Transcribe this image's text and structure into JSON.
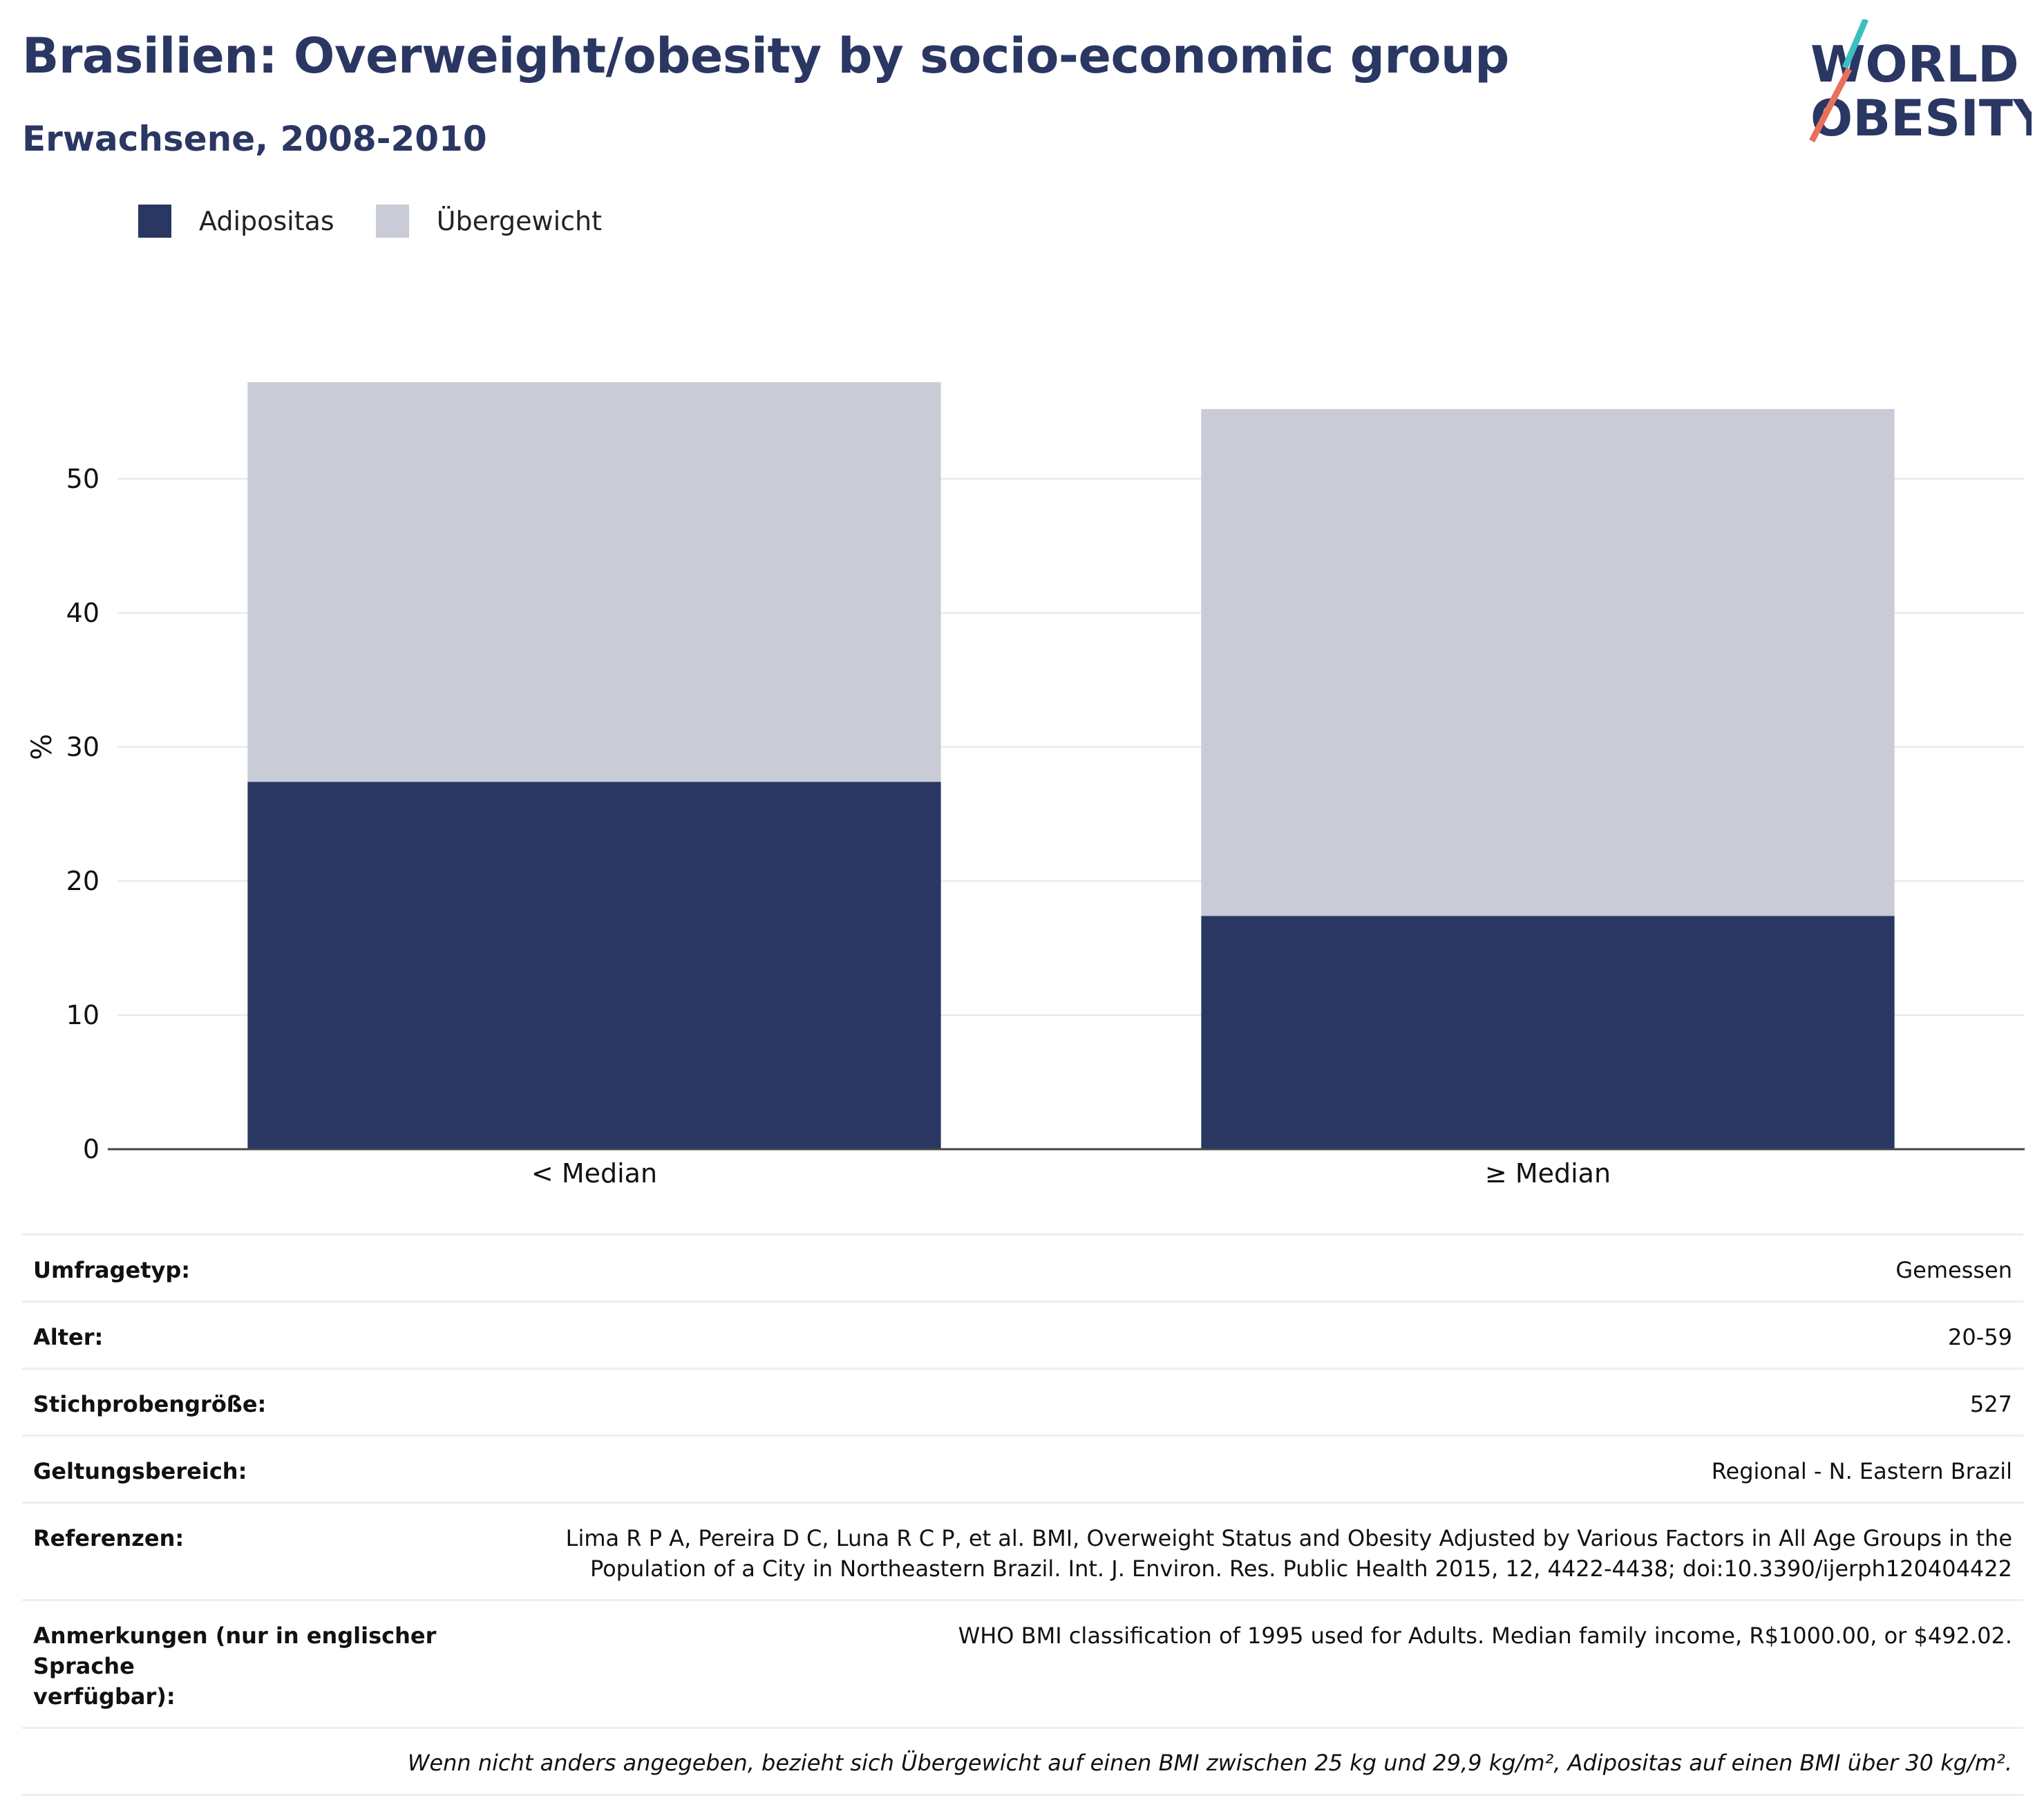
{
  "header": {
    "title": "Brasilien: Overweight/obesity by socio-economic group",
    "subtitle": "Erwachsene, 2008-2010"
  },
  "logo": {
    "line1": "WORLD",
    "line2": "OBESITY"
  },
  "colors": {
    "adipositas": "#2a3763",
    "uebergewicht": "#c9cbd6",
    "accent_teal": "#3dbfbf",
    "accent_coral": "#e8705c"
  },
  "chart_data": {
    "type": "bar",
    "stacked": true,
    "categories": [
      "< Median",
      "≥ Median"
    ],
    "series": [
      {
        "name": "Adipositas",
        "values": [
          27.4,
          17.4
        ]
      },
      {
        "name": "Übergewicht",
        "values": [
          29.8,
          37.8
        ]
      }
    ],
    "ylabel": "%",
    "ylim": [
      0,
      62
    ],
    "yticks": [
      0,
      10,
      20,
      30,
      40,
      50
    ],
    "grid": true,
    "legend": "top-left"
  },
  "info": {
    "rows": [
      {
        "key": "Umfragetyp:",
        "value": "Gemessen"
      },
      {
        "key": "Alter:",
        "value": "20-59"
      },
      {
        "key": "Stichprobengröße:",
        "value": "527"
      },
      {
        "key": "Geltungsbereich:",
        "value": "Regional - N. Eastern Brazil"
      },
      {
        "key": "Referenzen:",
        "value_line1": "Lima R P A, Pereira D C, Luna R C P, et al. BMI, Overweight Status and Obesity Adjusted by Various Factors in All Age Groups in the",
        "value_line2": "Population of a City in Northeastern Brazil. Int. J. Environ. Res. Public Health 2015, 12, 4422-4438; doi:10.3390/ijerph120404422"
      },
      {
        "key_line1": "Anmerkungen (nur in englischer Sprache",
        "key_line2": "verfügbar):",
        "value": "WHO BMI classification of 1995 used for Adults. Median family income, R$1000.00, or $492.02."
      }
    ],
    "footnote": "Wenn nicht anders angegeben, bezieht sich Übergewicht auf einen BMI zwischen 25 kg und 29,9 kg/m², Adipositas auf einen BMI über 30 kg/m²."
  }
}
